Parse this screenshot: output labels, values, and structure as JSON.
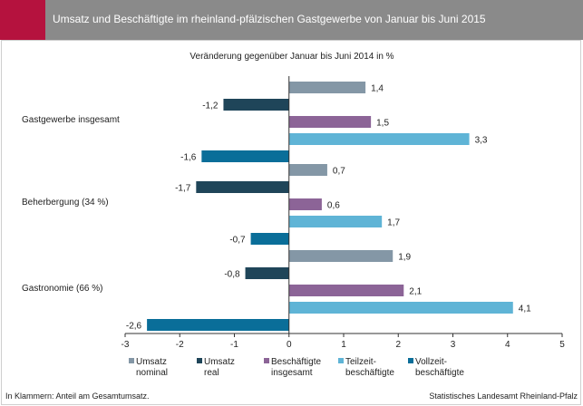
{
  "header": {
    "title": "Umsatz und Beschäftigte im rheinland-pfälzischen Gastgewerbe von Januar bis Juni 2015",
    "accent_color": "#b5123e",
    "bar_color": "#8a8a8a"
  },
  "chart_data": {
    "type": "bar",
    "orientation": "horizontal",
    "subtitle": "Veränderung gegenüber Januar bis Juni 2014 in %",
    "categories": [
      "Gastgewerbe insgesamt",
      "Beherbergung (34 %)",
      "Gastronomie (66 %)"
    ],
    "series": [
      {
        "name": "Umsatz nominal",
        "legend_lines": [
          "Umsatz",
          "nominal"
        ],
        "color": "#8497a6",
        "values": [
          1.4,
          0.7,
          1.9
        ],
        "labels": [
          "1,4",
          "0,7",
          "1,9"
        ]
      },
      {
        "name": "Umsatz real",
        "legend_lines": [
          "Umsatz",
          "real"
        ],
        "color": "#1f4559",
        "values": [
          -1.2,
          -1.7,
          -0.8
        ],
        "labels": [
          "-1,2",
          "-1,7",
          "-0,8"
        ]
      },
      {
        "name": "Beschäftigte insgesamt",
        "legend_lines": [
          "Beschäftigte",
          "insgesamt"
        ],
        "color": "#8c6497",
        "values": [
          1.5,
          0.6,
          2.1
        ],
        "labels": [
          "1,5",
          "0,6",
          "2,1"
        ]
      },
      {
        "name": "Teilzeitbeschäftigte",
        "legend_lines": [
          "Teilzeit-",
          "beschäftigte"
        ],
        "color": "#5fb4d6",
        "values": [
          3.3,
          1.7,
          4.1
        ],
        "labels": [
          "3,3",
          "1,7",
          "4,1"
        ]
      },
      {
        "name": "Vollzeitbeschäftigte",
        "legend_lines": [
          "Vollzeit-",
          "beschäftigte"
        ],
        "color": "#0a6e99",
        "values": [
          -1.6,
          -0.7,
          -2.6
        ],
        "labels": [
          "-1,6",
          "-0,7",
          "-2,6"
        ]
      }
    ],
    "xlim": [
      -3,
      5
    ],
    "xticks": [
      -3,
      -2,
      -1,
      0,
      1,
      2,
      3,
      4,
      5
    ],
    "grid": false,
    "legend_position": "bottom"
  },
  "footnote": "In Klammern: Anteil am Gesamtumsatz.",
  "source": "Statistisches Landesamt Rheinland-Pfalz"
}
